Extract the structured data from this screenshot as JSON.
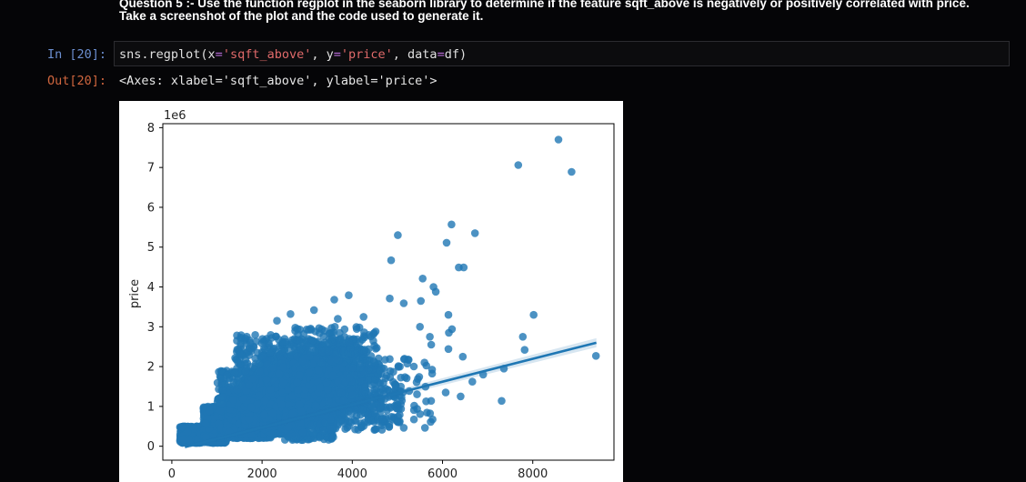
{
  "question": {
    "line1": "Question 5 :- Use the function regplot in the seaborn library to determine if the feature sqft_above is negatively or positively correlated with price.",
    "line2": "Take a screenshot of the plot and the code used to generate it."
  },
  "cell_in": {
    "prompt": "In [20]:",
    "code": {
      "func": "sns.regplot(x",
      "op1": "=",
      "str1": "'sqft_above'",
      "sep1": ", y",
      "op2": "=",
      "str2": "'price'",
      "sep2": ", data",
      "op3": "=",
      "tail": "df)"
    }
  },
  "cell_out": {
    "prompt": "Out[20]:",
    "text": "<Axes: xlabel='sqft_above', ylabel='price'>"
  },
  "chart_data": {
    "type": "scatter",
    "xlabel": "",
    "ylabel": "price",
    "offset_label": "1e6",
    "xlim": [
      -200,
      9800
    ],
    "ylim": [
      -350000,
      8100000
    ],
    "x_ticks": [
      0,
      2000,
      4000,
      6000,
      8000
    ],
    "y_ticks": [
      0,
      1,
      2,
      3,
      4,
      5,
      6,
      7,
      8
    ],
    "points_color": "#1f77b4",
    "regression": {
      "x": [
        290,
        9410
      ],
      "y": [
        -20000,
        2600000
      ]
    },
    "outliers": [
      {
        "x": 8570,
        "y": 7700000
      },
      {
        "x": 7680,
        "y": 7060000
      },
      {
        "x": 8860,
        "y": 6890000
      },
      {
        "x": 6720,
        "y": 5350000
      },
      {
        "x": 6200,
        "y": 5570000
      },
      {
        "x": 5010,
        "y": 5300000
      },
      {
        "x": 6090,
        "y": 5110000
      },
      {
        "x": 6360,
        "y": 4490000
      },
      {
        "x": 6470,
        "y": 4490000
      },
      {
        "x": 4860,
        "y": 4670000
      },
      {
        "x": 5560,
        "y": 4210000
      },
      {
        "x": 5800,
        "y": 4000000
      },
      {
        "x": 5850,
        "y": 3880000
      },
      {
        "x": 5520,
        "y": 3650000
      },
      {
        "x": 8020,
        "y": 3300000
      },
      {
        "x": 7780,
        "y": 2750000
      },
      {
        "x": 7820,
        "y": 2420000
      },
      {
        "x": 9400,
        "y": 2270000
      },
      {
        "x": 7360,
        "y": 1950000
      },
      {
        "x": 7310,
        "y": 1140000
      },
      {
        "x": 6130,
        "y": 3300000
      },
      {
        "x": 6210,
        "y": 2940000
      },
      {
        "x": 6140,
        "y": 2850000
      },
      {
        "x": 6450,
        "y": 2250000
      },
      {
        "x": 6130,
        "y": 2440000
      },
      {
        "x": 5720,
        "y": 2750000
      },
      {
        "x": 6900,
        "y": 1800000
      },
      {
        "x": 6660,
        "y": 1620000
      },
      {
        "x": 6400,
        "y": 1250000
      },
      {
        "x": 6070,
        "y": 1350000
      },
      {
        "x": 5500,
        "y": 3000000
      },
      {
        "x": 5750,
        "y": 2550000
      },
      {
        "x": 5600,
        "y": 2100000
      },
      {
        "x": 3920,
        "y": 3790000
      },
      {
        "x": 4830,
        "y": 3710000
      },
      {
        "x": 5140,
        "y": 3590000
      },
      {
        "x": 4250,
        "y": 3250000
      },
      {
        "x": 3600,
        "y": 3680000
      },
      {
        "x": 3150,
        "y": 3420000
      },
      {
        "x": 2630,
        "y": 3320000
      },
      {
        "x": 2330,
        "y": 3150000
      },
      {
        "x": 3680,
        "y": 3200000
      }
    ],
    "clusters": [
      {
        "x": [
          180,
          1200
        ],
        "y": [
          80000,
          500000
        ],
        "n": 900
      },
      {
        "x": [
          700,
          2200
        ],
        "y": [
          200000,
          1000000
        ],
        "n": 1400
      },
      {
        "x": [
          1200,
          3000
        ],
        "y": [
          300000,
          1400000
        ],
        "n": 1400
      },
      {
        "x": [
          1600,
          3400
        ],
        "y": [
          500000,
          1900000
        ],
        "n": 1000
      },
      {
        "x": [
          2000,
          3800
        ],
        "y": [
          700000,
          2300000
        ],
        "n": 800
      },
      {
        "x": [
          2400,
          4300
        ],
        "y": [
          900000,
          2700000
        ],
        "n": 500
      },
      {
        "x": [
          2700,
          4600
        ],
        "y": [
          1200000,
          3000000
        ],
        "n": 280
      },
      {
        "x": [
          3200,
          5100
        ],
        "y": [
          400000,
          2000000
        ],
        "n": 280
      },
      {
        "x": [
          4000,
          5800
        ],
        "y": [
          400000,
          2200000
        ],
        "n": 90
      },
      {
        "x": [
          1400,
          2500
        ],
        "y": [
          1800000,
          2800000
        ],
        "n": 120
      },
      {
        "x": [
          1000,
          2000
        ],
        "y": [
          900000,
          1900000
        ],
        "n": 200
      },
      {
        "x": [
          2500,
          3600
        ],
        "y": [
          150000,
          900000
        ],
        "n": 200
      }
    ]
  }
}
